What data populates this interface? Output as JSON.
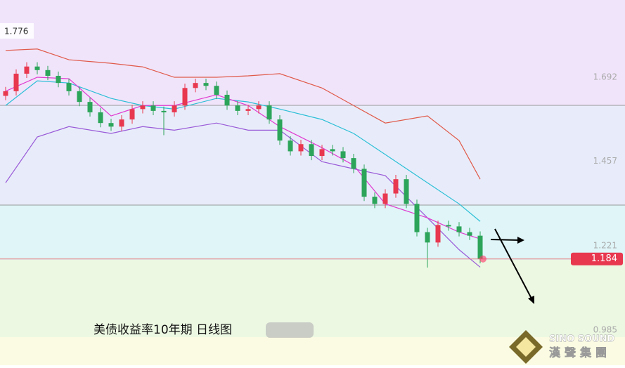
{
  "chart_data": {
    "type": "candlestick",
    "title": "美债收益率10年期 日线图",
    "up_color": "#e8384f",
    "down_color": "#2ca55a",
    "open": [
      1.64,
      1.653,
      1.702,
      1.722,
      1.712,
      1.696,
      1.676,
      1.653,
      1.623,
      1.594,
      1.564,
      1.554,
      1.574,
      1.603,
      1.613,
      1.598,
      1.594,
      1.613,
      1.662,
      1.676,
      1.668,
      1.643,
      1.613,
      1.598,
      1.603,
      1.613,
      1.574,
      1.515,
      1.485,
      1.505,
      1.472,
      1.491,
      1.485,
      1.466,
      1.436,
      1.358,
      1.338,
      1.367,
      1.407,
      1.338,
      1.259,
      1.23,
      1.279,
      1.275,
      1.259,
      1.249
    ],
    "high": [
      1.665,
      1.714,
      1.734,
      1.734,
      1.724,
      1.708,
      1.688,
      1.665,
      1.635,
      1.606,
      1.576,
      1.586,
      1.615,
      1.625,
      1.625,
      1.61,
      1.625,
      1.674,
      1.688,
      1.688,
      1.68,
      1.655,
      1.625,
      1.615,
      1.625,
      1.625,
      1.586,
      1.527,
      1.517,
      1.517,
      1.503,
      1.503,
      1.497,
      1.478,
      1.448,
      1.37,
      1.379,
      1.419,
      1.419,
      1.35,
      1.271,
      1.291,
      1.291,
      1.287,
      1.271,
      1.261
    ],
    "low": [
      1.628,
      1.641,
      1.69,
      1.7,
      1.684,
      1.664,
      1.641,
      1.611,
      1.582,
      1.552,
      1.542,
      1.542,
      1.562,
      1.591,
      1.586,
      1.53,
      1.582,
      1.601,
      1.65,
      1.656,
      1.631,
      1.601,
      1.586,
      1.586,
      1.591,
      1.562,
      1.503,
      1.473,
      1.473,
      1.46,
      1.46,
      1.473,
      1.454,
      1.424,
      1.346,
      1.326,
      1.326,
      1.355,
      1.326,
      1.247,
      1.16,
      1.218,
      1.263,
      1.247,
      1.237,
      1.172
    ],
    "close": [
      1.653,
      1.702,
      1.722,
      1.712,
      1.696,
      1.676,
      1.653,
      1.623,
      1.594,
      1.564,
      1.554,
      1.574,
      1.603,
      1.613,
      1.598,
      1.594,
      1.613,
      1.662,
      1.676,
      1.668,
      1.643,
      1.613,
      1.598,
      1.603,
      1.613,
      1.574,
      1.515,
      1.485,
      1.505,
      1.472,
      1.491,
      1.485,
      1.466,
      1.436,
      1.358,
      1.338,
      1.367,
      1.407,
      1.338,
      1.259,
      1.23,
      1.279,
      1.275,
      1.259,
      1.249,
      1.184
    ],
    "series": [
      {
        "color": "#e05a4a",
        "x": [
          0,
          3,
          6,
          10,
          13,
          16,
          20,
          23,
          26,
          30,
          33,
          36,
          40,
          43,
          45
        ],
        "values": [
          1.767,
          1.771,
          1.741,
          1.731,
          1.721,
          1.692,
          1.692,
          1.696,
          1.702,
          1.662,
          1.613,
          1.564,
          1.584,
          1.515,
          1.407
        ]
      },
      {
        "color": "#2bbfd6",
        "x": [
          0,
          3,
          6,
          10,
          13,
          16,
          20,
          23,
          26,
          30,
          33,
          36,
          40,
          43,
          45
        ],
        "values": [
          1.613,
          1.682,
          1.676,
          1.633,
          1.613,
          1.603,
          1.633,
          1.623,
          1.603,
          1.574,
          1.535,
          1.476,
          1.397,
          1.338,
          1.289
        ]
      },
      {
        "color": "#9a5ad8",
        "x": [
          0,
          3,
          6,
          10,
          13,
          16,
          20,
          23,
          26,
          30,
          33,
          36,
          40,
          43,
          45
        ],
        "values": [
          1.397,
          1.525,
          1.554,
          1.535,
          1.554,
          1.544,
          1.564,
          1.544,
          1.544,
          1.456,
          1.436,
          1.417,
          1.299,
          1.21,
          1.161
        ]
      },
      {
        "color": "#e03ad0",
        "x": [
          0,
          3,
          6,
          10,
          13,
          16,
          20,
          23,
          26,
          30,
          33,
          36,
          40,
          43,
          45
        ],
        "values": [
          1.653,
          1.692,
          1.688,
          1.584,
          1.613,
          1.613,
          1.643,
          1.613,
          1.554,
          1.495,
          1.446,
          1.338,
          1.299,
          1.259,
          1.24
        ]
      }
    ],
    "ylim": [
      0.887,
      1.908
    ],
    "yticks": [
      0.985,
      1.221,
      1.457,
      1.692
    ],
    "high_label": 1.776,
    "last_price": 1.184,
    "brand": {
      "name_en": "SINO SOUND",
      "name_cn": "漢聲集團"
    }
  }
}
